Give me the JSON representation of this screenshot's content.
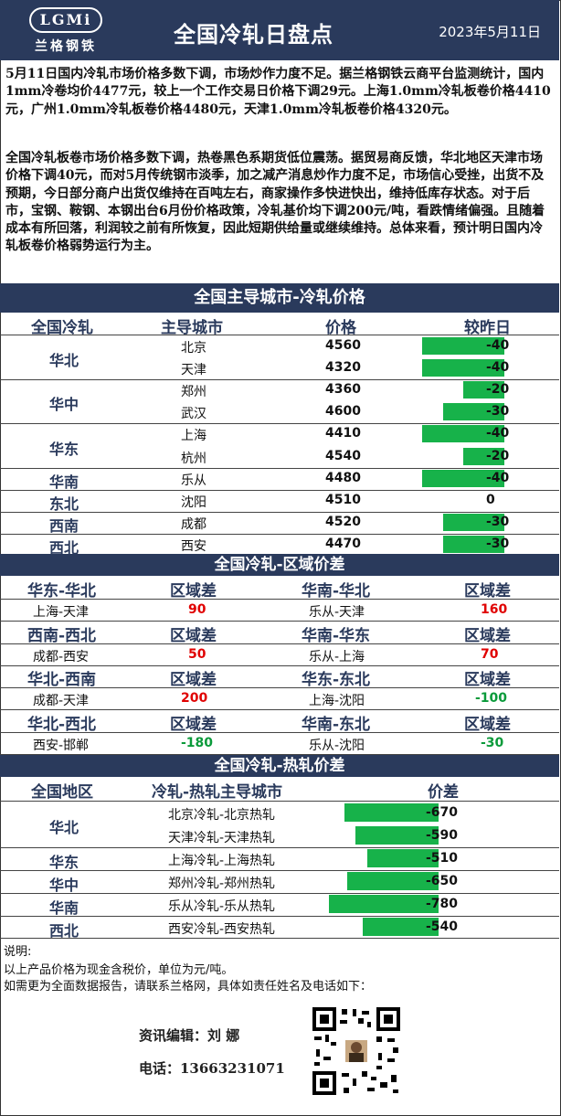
{
  "header": {
    "logo_text": "LGMi",
    "logo_name": "兰格钢铁",
    "title": "全国冷轧日盘点",
    "date": "2023年5月11日"
  },
  "intro": {
    "p1": "5月11日国内冷轧市场价格多数下调，市场炒作力度不足。据兰格钢铁云商平台监测统计，国内1mm冷卷均价4477元，较上一个工作交易日价格下调29元。上海1.0mm冷轧板卷价格4410元，广州1.0mm冷轧板卷价格4480元，天津1.0mm冷轧板卷价格4320元。",
    "p2": "全国冷轧板卷市场价格多数下调，热卷黑色系期货低位震荡。据贸易商反馈，华北地区天津市场价格下调40元，而对5月传统钢市淡季，加之减产消息炒作力度不足，市场信心受挫，出货不及预期，今日部分商户出货仅维持在百吨左右，商家操作多快进快出，维持低库存状态。对于后市，宝钢、鞍钢、本钢出台6月份价格政策，冷轧基价均下调200元/吨，看跌情绪偏强。且随着成本有所回落，利润较之前有所恢复，因此短期供给量或继续维持。总体来看，预计明日国内冷轧板卷价格弱势运行为主。"
  },
  "prices": {
    "title": "全国主导城市-冷轧价格",
    "headers": [
      "全国冷轧",
      "主导城市",
      "价格",
      "较昨日"
    ],
    "rows": [
      {
        "region": "华北",
        "city": "北京",
        "price": "4560",
        "change": "-40",
        "delta": -40
      },
      {
        "region": "",
        "city": "天津",
        "price": "4320",
        "change": "-40",
        "delta": -40
      },
      {
        "region": "华中",
        "city": "郑州",
        "price": "4360",
        "change": "-20",
        "delta": -20
      },
      {
        "region": "",
        "city": "武汉",
        "price": "4600",
        "change": "-30",
        "delta": -30
      },
      {
        "region": "华东",
        "city": "上海",
        "price": "4410",
        "change": "-40",
        "delta": -40
      },
      {
        "region": "",
        "city": "杭州",
        "price": "4540",
        "change": "-20",
        "delta": -20
      },
      {
        "region": "华南",
        "city": "乐从",
        "price": "4480",
        "change": "-40",
        "delta": -40
      },
      {
        "region": "东北",
        "city": "沈阳",
        "price": "4510",
        "change": "0",
        "delta": 0
      },
      {
        "region": "西南",
        "city": "成都",
        "price": "4520",
        "change": "-30",
        "delta": -30
      },
      {
        "region": "西北",
        "city": "西安",
        "price": "4470",
        "change": "-30",
        "delta": -30
      }
    ]
  },
  "spread": {
    "title": "全国冷轧-区域价差",
    "diff_label": "区域差",
    "blocks": [
      {
        "left_title": "华东-华北",
        "left_pair": "上海-天津",
        "left_value": "90",
        "left_sign": "red",
        "right_title": "华南-华北",
        "right_pair": "乐从-天津",
        "right_value": "160",
        "right_sign": "red"
      },
      {
        "left_title": "西南-西北",
        "left_pair": "成都-西安",
        "left_value": "50",
        "left_sign": "red",
        "right_title": "华南-华东",
        "right_pair": "乐从-上海",
        "right_value": "70",
        "right_sign": "red"
      },
      {
        "left_title": "华北-西南",
        "left_pair": "成都-天津",
        "left_value": "200",
        "left_sign": "red",
        "right_title": "华东-东北",
        "right_pair": "上海-沈阳",
        "right_value": "-100",
        "right_sign": "green"
      },
      {
        "left_title": "华北-西北",
        "left_pair": "西安-邯郸",
        "left_value": "-180",
        "left_sign": "green",
        "right_title": "华南-东北",
        "right_pair": "乐从-沈阳",
        "right_value": "-30",
        "right_sign": "green"
      }
    ]
  },
  "hotcold": {
    "title": "全国冷轧-热轧价差",
    "headers": [
      "全国地区",
      "冷轧-热轧主导城市",
      "价差"
    ],
    "rows": [
      {
        "region": "华北",
        "pair": "北京冷轧-北京热轧",
        "value": "-670",
        "delta": -670
      },
      {
        "region": "",
        "pair": "天津冷轧-天津热轧",
        "value": "-590",
        "delta": -590
      },
      {
        "region": "华东",
        "pair": "上海冷轧-上海热轧",
        "value": "-510",
        "delta": -510
      },
      {
        "region": "华中",
        "pair": "郑州冷轧-郑州热轧",
        "value": "-650",
        "delta": -650
      },
      {
        "region": "华南",
        "pair": "乐从冷轧-乐从热轧",
        "value": "-780",
        "delta": -780
      },
      {
        "region": "西北",
        "pair": "西安冷轧-西安热轧",
        "value": "-540",
        "delta": -540
      }
    ]
  },
  "notes": {
    "label": "说明:",
    "line1": "以上产品价格为现金含税价，单位为元/吨。",
    "line2": "如需更为全面数据报告，请联系兰格网，具体如责任姓名及电话如下："
  },
  "contact": {
    "editor_label": "资讯编辑：刘  娜",
    "phone_label": "电话：13663231071"
  },
  "colors": {
    "navy": "#2a3a5c",
    "bar_green": "#17b24a",
    "negative": "#0a9a3a",
    "positive": "#e00000"
  }
}
